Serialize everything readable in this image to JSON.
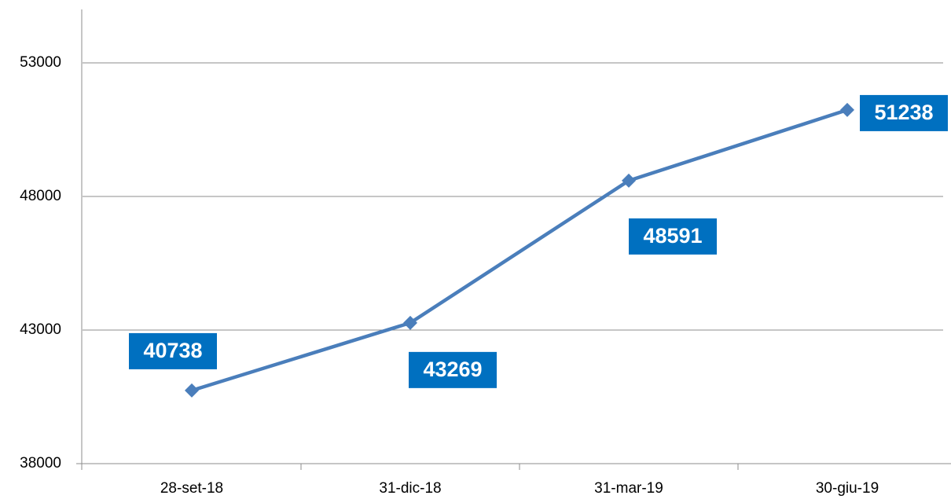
{
  "chart_data": {
    "type": "line",
    "categories": [
      "28-set-18",
      "31-dic-18",
      "31-mar-19",
      "30-giu-19"
    ],
    "series": [
      {
        "color": "#4a7ebb",
        "values": [
          40738,
          43269,
          48591,
          51238
        ]
      }
    ],
    "label_color": "#0070c0",
    "ylim": [
      38000,
      55000
    ],
    "yticks": [
      38000,
      43000,
      48000,
      53000
    ],
    "grid": true
  }
}
